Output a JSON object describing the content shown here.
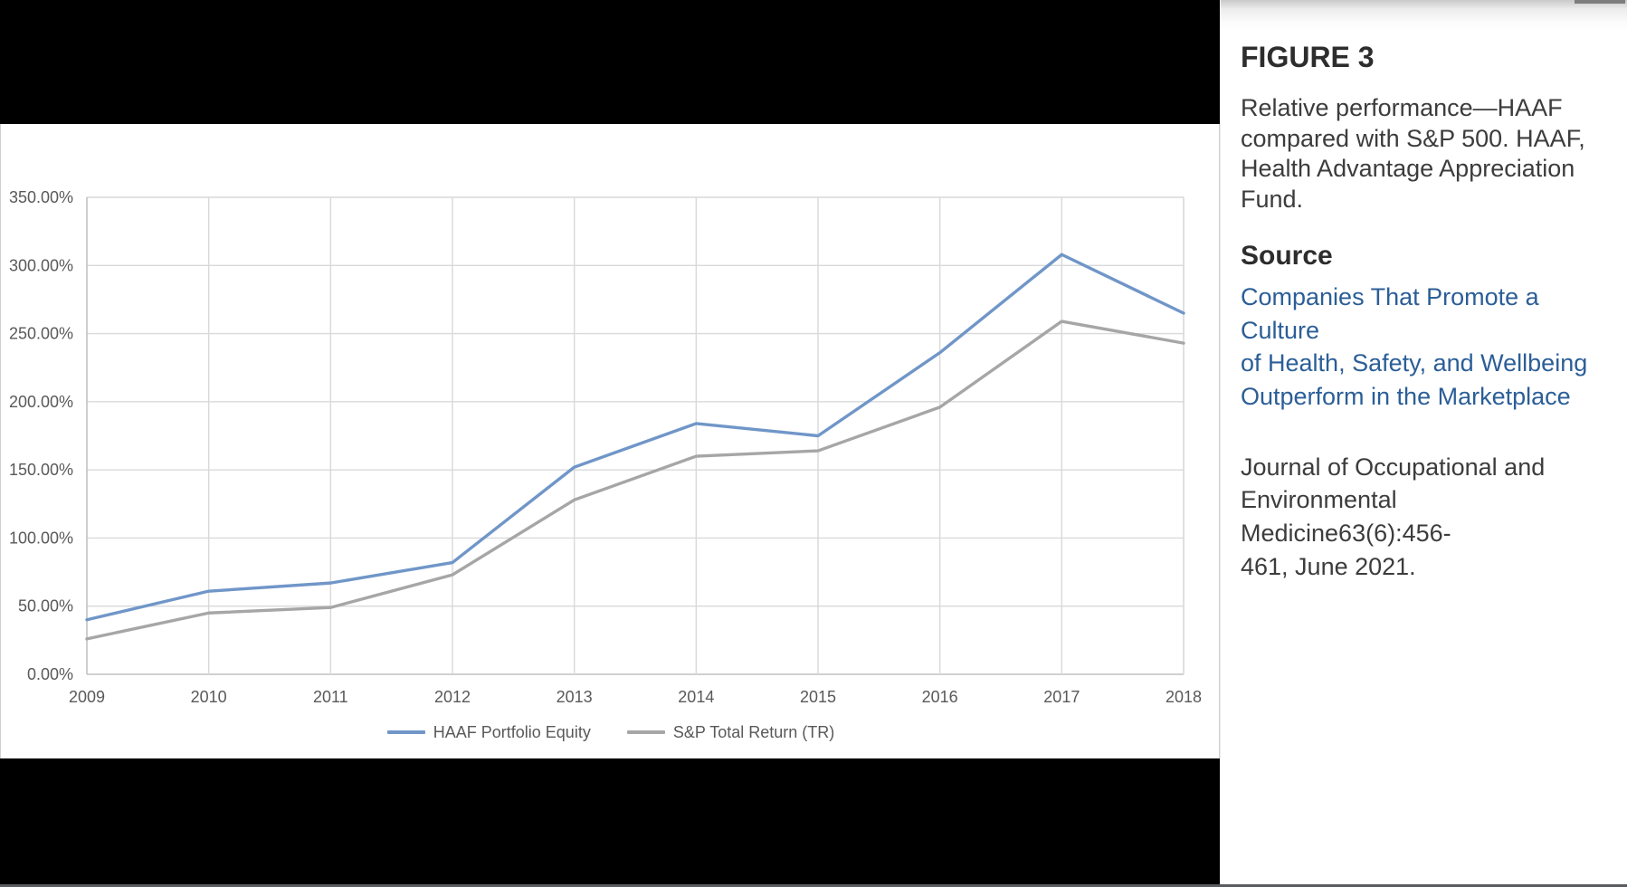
{
  "sidebar": {
    "figure_label": "FIGURE 3",
    "caption": "Relative performance—HAAF\ncompared with S&P 500. HAAF,\nHealth Advantage Appreciation\nFund.",
    "source_heading": "Source",
    "article_link": "Companies That Promote a Culture\nof Health, Safety, and Wellbeing\nOutperform in the Marketplace",
    "citation": "Journal of Occupational and\nEnvironmental Medicine63(6):456-\n461, June 2021.",
    "link_color": "#2b5e97",
    "heading_color": "#2d2d2d",
    "body_text_color": "#3c3c3c"
  },
  "chart_data": {
    "type": "line",
    "x": [
      "2009",
      "2010",
      "2011",
      "2012",
      "2013",
      "2014",
      "2015",
      "2016",
      "2017",
      "2018"
    ],
    "series": [
      {
        "name": "HAAF Portfolio Equity",
        "color": "#7096c8",
        "values": [
          40,
          61,
          67,
          82,
          152,
          184,
          175,
          236,
          308,
          265
        ]
      },
      {
        "name": "S&P Total Return (TR)",
        "color": "#a6a6a6",
        "values": [
          26,
          45,
          49,
          73,
          128,
          160,
          164,
          196,
          259,
          243
        ]
      }
    ],
    "ylim": [
      0,
      350
    ],
    "ytick_step": 50,
    "ytick_labels": [
      "0.00%",
      "50.00%",
      "100.00%",
      "150.00%",
      "200.00%",
      "250.00%",
      "300.00%",
      "350.00%"
    ],
    "xlabel": "",
    "ylabel": "",
    "title": "",
    "grid": true,
    "legend_position": "bottom",
    "gridline_color": "#d9d9d9",
    "axis_line_color": "#c2c2c2",
    "tick_label_color": "#595959"
  }
}
